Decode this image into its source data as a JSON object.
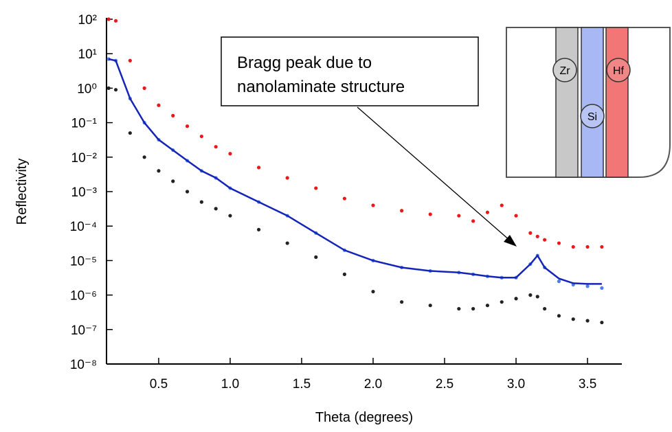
{
  "chart_data": {
    "type": "scatter",
    "y_scale": "log",
    "x_label": "Theta (degrees)",
    "y_label": "Reflectivity",
    "xlim": [
      0.135,
      3.74
    ],
    "ylim": [
      1e-08,
      100
    ],
    "xticks": [
      0.5,
      {
        "value": 1,
        "label": "1.0"
      },
      1.5,
      {
        "value": 2,
        "label": "2.0"
      },
      2.5,
      {
        "value": 3,
        "label": "3.0"
      },
      3.5
    ],
    "yticks": [
      {
        "value": 100,
        "label": "10²"
      },
      {
        "value": 10,
        "label": "10¹"
      },
      {
        "value": 1,
        "label": "10⁰"
      },
      {
        "value": 0.1,
        "label": "10⁻¹"
      },
      {
        "value": 0.01,
        "label": "10⁻²"
      },
      {
        "value": 0.001,
        "label": "10⁻³"
      },
      {
        "value": 0.0001,
        "label": "10⁻⁴"
      },
      {
        "value": 1e-05,
        "label": "10⁻⁵"
      },
      {
        "value": 1e-06,
        "label": "10⁻⁶"
      },
      {
        "value": 1e-07,
        "label": "10⁻⁷"
      },
      {
        "value": 1e-08,
        "label": "10⁻⁸"
      }
    ],
    "x": [
      0.15,
      0.2,
      0.3,
      0.4,
      0.5,
      0.6,
      0.7,
      0.8,
      0.9,
      1.0,
      1.2,
      1.4,
      1.6,
      1.8,
      2.0,
      2.2,
      2.4,
      2.6,
      2.7,
      2.8,
      2.9,
      3.0,
      3.1,
      3.15,
      3.2,
      3.3,
      3.4,
      3.5,
      3.6
    ],
    "series": [
      {
        "style": "markers",
        "color": "#e8191b",
        "values": [
          100,
          90,
          6.3,
          1,
          0.32,
          0.16,
          0.079,
          0.04,
          0.02,
          0.0126,
          0.005,
          0.0025,
          0.00126,
          0.00063,
          0.0004,
          0.00028,
          0.00022,
          0.0002,
          0.00014,
          0.00025,
          0.0004,
          0.0002,
          6.3e-05,
          5e-05,
          4e-05,
          3.2e-05,
          2.5e-05,
          2.5e-05,
          2.5e-05
        ]
      },
      {
        "style": "markers",
        "color": "#4f7fe6",
        "values": [
          7,
          6.3,
          0.5,
          0.1,
          0.032,
          0.016,
          0.0079,
          0.004,
          0.0025,
          0.00126,
          0.0005,
          0.0002,
          6.3e-05,
          2e-05,
          1e-05,
          6.3e-06,
          5e-06,
          4.5e-06,
          4e-06,
          3.5e-06,
          3.2e-06,
          3.2e-06,
          7.9e-06,
          1.4e-05,
          6.3e-06,
          2.5e-06,
          2e-06,
          1.8e-06,
          1.6e-06
        ]
      },
      {
        "style": "line",
        "color": "#1424b8",
        "values": [
          7,
          6.3,
          0.5,
          0.1,
          0.032,
          0.016,
          0.0079,
          0.004,
          0.0025,
          0.00126,
          0.0005,
          0.0002,
          6.3e-05,
          2e-05,
          1e-05,
          6.3e-06,
          5e-06,
          4.5e-06,
          4e-06,
          3.5e-06,
          3.2e-06,
          3.2e-06,
          7.9e-06,
          1.4e-05,
          6.3e-06,
          3e-06,
          2.2e-06,
          2.1e-06,
          2.1e-06
        ]
      },
      {
        "style": "markers",
        "color": "#222222",
        "values": [
          1,
          0.9,
          0.05,
          0.01,
          0.004,
          0.002,
          0.001,
          0.0005,
          0.00032,
          0.0002,
          7.9e-05,
          3.2e-05,
          1.26e-05,
          4e-06,
          1.26e-06,
          6.3e-07,
          5e-07,
          4e-07,
          4e-07,
          5e-07,
          6.3e-07,
          7.9e-07,
          1e-06,
          9e-07,
          4e-07,
          2.5e-07,
          2e-07,
          1.8e-07,
          1.6e-07
        ]
      }
    ],
    "annotation": {
      "lines": [
        "Bragg peak due to",
        "nanolaminate structure"
      ]
    },
    "inset": {
      "labels": [
        "Zr",
        "Si",
        "Hf"
      ]
    }
  }
}
